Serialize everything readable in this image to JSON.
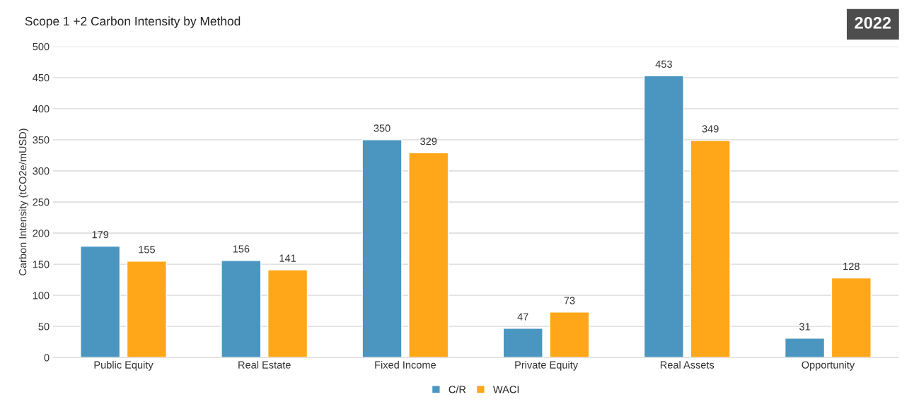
{
  "chart_data": {
    "type": "bar",
    "title": "Scope 1 +2 Carbon Intensity by Method",
    "ylabel": "Carbon Intensity (tCO2e/mUSD)",
    "categories": [
      "Public Equity",
      "Real Estate",
      "Fixed Income",
      "Private Equity",
      "Real Assets",
      "Opportunity"
    ],
    "series": [
      {
        "name": "C/R",
        "color": "#4a96c0",
        "values": [
          179,
          156,
          350,
          47,
          453,
          31
        ]
      },
      {
        "name": "WACI",
        "color": "#ffa719",
        "values": [
          155,
          141,
          329,
          73,
          349,
          128
        ]
      }
    ],
    "ylim": [
      0,
      500
    ],
    "yticks": [
      0,
      50,
      100,
      150,
      200,
      250,
      300,
      350,
      400,
      450,
      500
    ],
    "grid": "y",
    "legend": "bottom",
    "data_labels": true,
    "annotations": [
      "2022"
    ]
  }
}
